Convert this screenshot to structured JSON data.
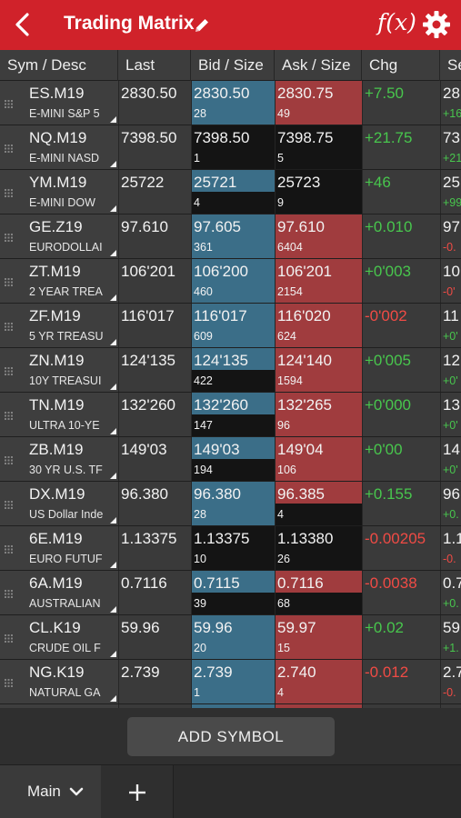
{
  "header": {
    "title": "Trading Matrix",
    "fx_label": "f(x)"
  },
  "columns": [
    "Sym / Desc",
    "Last",
    "Bid / Size",
    "Ask / Size",
    "Chg",
    "Se"
  ],
  "rows": [
    {
      "sym": "ES.M19",
      "desc": "E-MINI S&P 5",
      "last": "2830.50",
      "bid": "2830.50",
      "bid_size": "28",
      "ask": "2830.75",
      "ask_size": "49",
      "chg": "+7.50",
      "chg_dir": "pos",
      "settle": "28",
      "settle_sub": "+16",
      "settle_dir": "pos",
      "bid_dark": "none",
      "ask_dark": "none"
    },
    {
      "sym": "NQ.M19",
      "desc": "E-MINI NASD",
      "last": "7398.50",
      "bid": "7398.50",
      "bid_size": "1",
      "ask": "7398.75",
      "ask_size": "5",
      "chg": "+21.75",
      "chg_dir": "pos",
      "settle": "73",
      "settle_sub": "+21",
      "settle_dir": "pos",
      "bid_dark": "full",
      "ask_dark": "full"
    },
    {
      "sym": "YM.M19",
      "desc": "E-MINI DOW",
      "last": "25722",
      "bid": "25721",
      "bid_size": "4",
      "ask": "25723",
      "ask_size": "9",
      "chg": "+46",
      "chg_dir": "pos",
      "settle": "25",
      "settle_sub": "+99",
      "settle_dir": "pos",
      "bid_dark": "bottom",
      "ask_dark": "full"
    },
    {
      "sym": "GE.Z19",
      "desc": "EURODOLLAI",
      "last": "97.610",
      "bid": "97.605",
      "bid_size": "361",
      "ask": "97.610",
      "ask_size": "6404",
      "chg": "+0.010",
      "chg_dir": "pos",
      "settle": "97",
      "settle_sub": "-0.",
      "settle_dir": "neg",
      "bid_dark": "none",
      "ask_dark": "none"
    },
    {
      "sym": "ZT.M19",
      "desc": "2 YEAR TREA",
      "last": "106'201",
      "bid": "106'200",
      "bid_size": "460",
      "ask": "106'201",
      "ask_size": "2154",
      "chg": "+0'003",
      "chg_dir": "pos",
      "settle": "10",
      "settle_sub": "-0'",
      "settle_dir": "neg",
      "bid_dark": "none",
      "ask_dark": "none"
    },
    {
      "sym": "ZF.M19",
      "desc": "5 YR TREASU",
      "last": "116'017",
      "bid": "116'017",
      "bid_size": "609",
      "ask": "116'020",
      "ask_size": "624",
      "chg": "-0'002",
      "chg_dir": "neg",
      "settle": "11",
      "settle_sub": "+0'",
      "settle_dir": "pos",
      "bid_dark": "none",
      "ask_dark": "none"
    },
    {
      "sym": "ZN.M19",
      "desc": "10Y TREASUI",
      "last": "124'135",
      "bid": "124'135",
      "bid_size": "422",
      "ask": "124'140",
      "ask_size": "1594",
      "chg": "+0'005",
      "chg_dir": "pos",
      "settle": "12",
      "settle_sub": "+0'",
      "settle_dir": "pos",
      "bid_dark": "bottom",
      "ask_dark": "none"
    },
    {
      "sym": "TN.M19",
      "desc": "ULTRA 10-YE",
      "last": "132'260",
      "bid": "132'260",
      "bid_size": "147",
      "ask": "132'265",
      "ask_size": "96",
      "chg": "+0'000",
      "chg_dir": "pos",
      "settle": "13",
      "settle_sub": "+0'",
      "settle_dir": "pos",
      "bid_dark": "bottom",
      "ask_dark": "none"
    },
    {
      "sym": "ZB.M19",
      "desc": "30 YR U.S. TF",
      "last": "149'03",
      "bid": "149'03",
      "bid_size": "194",
      "ask": "149'04",
      "ask_size": "106",
      "chg": "+0'00",
      "chg_dir": "pos",
      "settle": "14",
      "settle_sub": "+0'",
      "settle_dir": "pos",
      "bid_dark": "bottom",
      "ask_dark": "none"
    },
    {
      "sym": "DX.M19",
      "desc": "US Dollar Inde",
      "last": "96.380",
      "bid": "96.380",
      "bid_size": "28",
      "ask": "96.385",
      "ask_size": "4",
      "chg": "+0.155",
      "chg_dir": "pos",
      "settle": "96",
      "settle_sub": "+0.",
      "settle_dir": "pos",
      "bid_dark": "none",
      "ask_dark": "bottom"
    },
    {
      "sym": "6E.M19",
      "desc": "EURO FUTUF",
      "last": "1.13375",
      "bid": "1.13375",
      "bid_size": "10",
      "ask": "1.13380",
      "ask_size": "26",
      "chg": "-0.00205",
      "chg_dir": "neg",
      "settle": "1.1",
      "settle_sub": "-0.",
      "settle_dir": "neg",
      "bid_dark": "full",
      "ask_dark": "full"
    },
    {
      "sym": "6A.M19",
      "desc": "AUSTRALIAN",
      "last": "0.7116",
      "bid": "0.7115",
      "bid_size": "39",
      "ask": "0.7116",
      "ask_size": "68",
      "chg": "-0.0038",
      "chg_dir": "neg",
      "settle": "0.7",
      "settle_sub": "+0.",
      "settle_dir": "pos",
      "bid_dark": "bottom",
      "ask_dark": "bottom"
    },
    {
      "sym": "CL.K19",
      "desc": "CRUDE OIL F",
      "last": "59.96",
      "bid": "59.96",
      "bid_size": "20",
      "ask": "59.97",
      "ask_size": "15",
      "chg": "+0.02",
      "chg_dir": "pos",
      "settle": "59",
      "settle_sub": "+1.",
      "settle_dir": "pos",
      "bid_dark": "none",
      "ask_dark": "none"
    },
    {
      "sym": "NG.K19",
      "desc": "NATURAL GA",
      "last": "2.739",
      "bid": "2.739",
      "bid_size": "1",
      "ask": "2.740",
      "ask_size": "4",
      "chg": "-0.012",
      "chg_dir": "neg",
      "settle": "2.7",
      "settle_sub": "-0.",
      "settle_dir": "neg",
      "bid_dark": "none",
      "ask_dark": "none"
    }
  ],
  "add_symbol_label": "ADD SYMBOL",
  "tabs": {
    "main_label": "Main",
    "add_label": "+"
  },
  "colors": {
    "brand": "#d0222a",
    "bid": "#3b6e88",
    "ask": "#a03c3e",
    "positive": "#48c64d",
    "negative": "#f04b45"
  },
  "icons": {
    "back": "chevron-left-icon",
    "edit": "pencil-icon",
    "formula": "fx-icon",
    "settings": "gear-icon",
    "tab_menu": "chevron-down-icon",
    "add_tab": "plus-icon"
  }
}
